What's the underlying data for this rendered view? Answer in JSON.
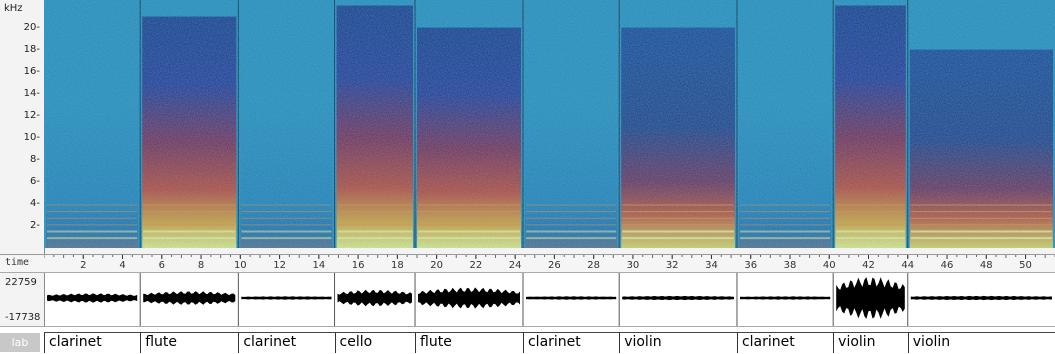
{
  "spectrogram": {
    "unit_label": "kHz",
    "y_ticks": [
      {
        "value": 2,
        "label": "2-"
      },
      {
        "value": 4,
        "label": "4-"
      },
      {
        "value": 6,
        "label": "6-"
      },
      {
        "value": 8,
        "label": "8-"
      },
      {
        "value": 10,
        "label": "10-"
      },
      {
        "value": 12,
        "label": "12-"
      },
      {
        "value": 14,
        "label": "14-"
      },
      {
        "value": 16,
        "label": "16-"
      },
      {
        "value": 18,
        "label": "18-"
      },
      {
        "value": 20,
        "label": "20-"
      }
    ],
    "y_max_khz": 22.5,
    "colors": {
      "bg": "#2a88b4",
      "bar": "#1b2a6b",
      "hot": "#f9e05a"
    }
  },
  "time_axis": {
    "label": "time",
    "start": 0,
    "end": 51.5,
    "ticks": [
      2,
      4,
      6,
      8,
      10,
      12,
      14,
      16,
      18,
      20,
      22,
      24,
      26,
      28,
      30,
      32,
      34,
      36,
      38,
      40,
      42,
      44,
      46,
      48,
      50
    ]
  },
  "waveform": {
    "max_label": "22759",
    "min_label": "-17738",
    "segments": [
      {
        "start": 0.0,
        "end": 4.9,
        "amp": 0.18
      },
      {
        "start": 4.9,
        "end": 9.9,
        "amp": 0.28
      },
      {
        "start": 9.9,
        "end": 14.8,
        "amp": 0.04
      },
      {
        "start": 14.8,
        "end": 18.9,
        "amp": 0.35
      },
      {
        "start": 18.9,
        "end": 24.4,
        "amp": 0.45
      },
      {
        "start": 24.4,
        "end": 29.3,
        "amp": 0.04
      },
      {
        "start": 29.3,
        "end": 35.3,
        "amp": 0.06
      },
      {
        "start": 35.3,
        "end": 40.2,
        "amp": 0.04
      },
      {
        "start": 40.2,
        "end": 44.0,
        "amp": 0.95
      },
      {
        "start": 44.0,
        "end": 51.5,
        "amp": 0.06
      }
    ]
  },
  "labels": {
    "tier_tag": "lab",
    "segments": [
      {
        "text": "clarinet",
        "start": 0.0,
        "end": 4.9
      },
      {
        "text": "flute",
        "start": 4.9,
        "end": 9.9
      },
      {
        "text": "clarinet",
        "start": 9.9,
        "end": 14.8
      },
      {
        "text": "cello",
        "start": 14.8,
        "end": 18.9
      },
      {
        "text": "flute",
        "start": 18.9,
        "end": 24.4
      },
      {
        "text": "clarinet",
        "start": 24.4,
        "end": 29.3
      },
      {
        "text": "violin",
        "start": 29.3,
        "end": 35.3
      },
      {
        "text": "clarinet",
        "start": 35.3,
        "end": 40.2
      },
      {
        "text": "violin",
        "start": 40.2,
        "end": 44.0
      },
      {
        "text": "violin",
        "start": 44.0,
        "end": 51.5
      }
    ]
  }
}
